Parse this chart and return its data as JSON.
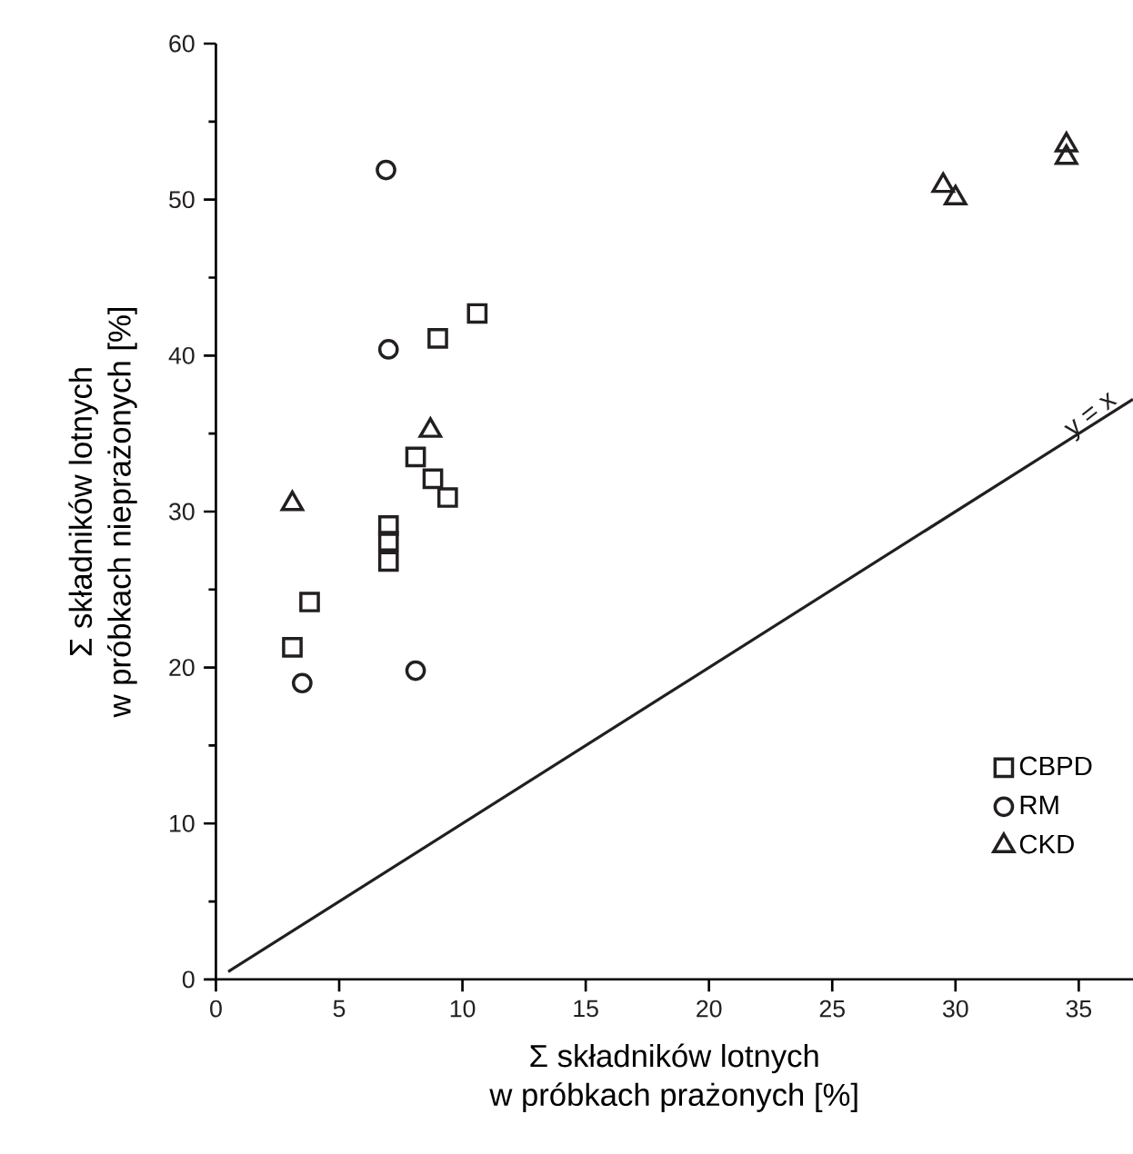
{
  "chart_data": {
    "type": "scatter",
    "xlabel": "Σ składników lotnych\nw próbkach prażonych [%]",
    "ylabel": "Σ składników lotnych\nw próbkach nieprażonych [%]",
    "xlim": [
      0,
      37.2
    ],
    "ylim": [
      0,
      60
    ],
    "xticks": [
      0,
      5,
      10,
      15,
      20,
      25,
      30,
      35
    ],
    "yticks": [
      0,
      10,
      20,
      30,
      40,
      50,
      60
    ],
    "legend": "bottom right",
    "grid": false,
    "annotations": [
      "y = x"
    ],
    "series": [
      {
        "name": "CBPD",
        "color": "#231f20",
        "marker": "square",
        "x": [
          10.6,
          9.0,
          8.1,
          8.8,
          9.4,
          7.0,
          7.0,
          7.0,
          3.8,
          3.1
        ],
        "values": [
          42.7,
          41.1,
          33.5,
          32.1,
          30.9,
          29.1,
          28.1,
          26.8,
          24.2,
          21.3
        ]
      },
      {
        "name": "RM",
        "color": "#231f20",
        "marker": "circle",
        "x": [
          6.9,
          7.0,
          3.5,
          8.1
        ],
        "values": [
          51.9,
          40.4,
          19.0,
          19.8
        ]
      },
      {
        "name": "CKD",
        "color": "#231f20",
        "marker": "triangle",
        "x": [
          8.7,
          3.1,
          29.5,
          30.0,
          34.5,
          34.5
        ],
        "values": [
          35.2,
          30.5,
          50.9,
          50.1,
          53.5,
          52.7
        ]
      },
      {
        "type": "line",
        "color": "#231f20",
        "line_style": "solid",
        "marker": "none",
        "x": [
          0.5,
          37.2
        ],
        "values": [
          0.5,
          37.2
        ]
      }
    ]
  }
}
